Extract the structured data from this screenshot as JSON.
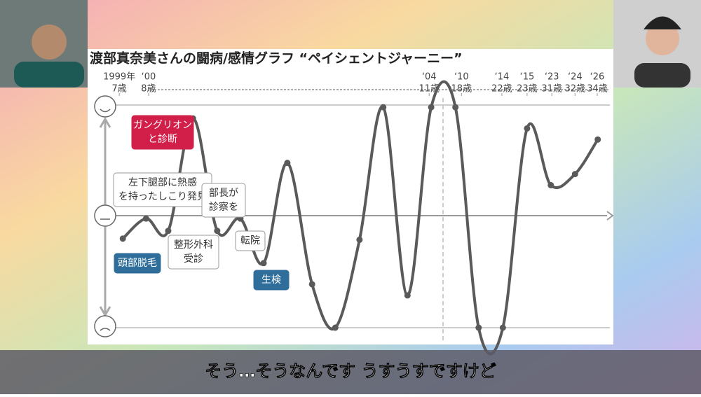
{
  "chart_data": {
    "type": "line",
    "title": "渡部真奈美さんの闘病/感情グラフ “ペイシェントジャーニー”",
    "xlim": [
      0,
      100
    ],
    "xticks": [
      {
        "value": 2.8,
        "label": "1999年"
      },
      {
        "value": 8.6,
        "label": "‘00"
      },
      {
        "value": 64.2,
        "label": "‘04"
      },
      {
        "value": 70.6,
        "label": "‘10"
      },
      {
        "value": 78.6,
        "label": "‘14"
      },
      {
        "value": 83.6,
        "label": "‘15"
      },
      {
        "value": 88.5,
        "label": "‘23"
      },
      {
        "value": 93.1,
        "label": "‘24"
      },
      {
        "value": 97.5,
        "label": "‘26"
      }
    ],
    "tick_ages": [
      "7歳",
      "8歳",
      "11歳",
      "18歳",
      "22歳",
      "23歳",
      "31歳",
      "32歳",
      "34歳"
    ],
    "ylim": [
      -1,
      1
    ],
    "series": [
      {
        "color": "#5a5a5a",
        "x": [
          3.5,
          8.1,
          12.5,
          17.4,
          22.2,
          26.8,
          31.4,
          36.1,
          41.0,
          45.6,
          50.4,
          55.1,
          59.9,
          64.6,
          69.4,
          74.0,
          78.8,
          83.6,
          88.3,
          93.1,
          97.6
        ],
        "values": [
          -0.2,
          -0.02,
          -0.13,
          0.88,
          -0.13,
          -0.02,
          -0.42,
          0.48,
          -0.61,
          -1.0,
          -0.21,
          0.98,
          -0.71,
          0.98,
          0.98,
          -1.0,
          -1.0,
          0.79,
          0.28,
          0.38,
          0.69
        ]
      }
    ],
    "annotations": [
      {
        "lines": [
          "ガングリオン",
          "と診断"
        ],
        "style": "red"
      },
      {
        "lines": [
          "左下腿部に熱感",
          "を持ったしこり発見"
        ],
        "style": "white"
      },
      {
        "lines": [
          "部長が",
          "診察を"
        ],
        "style": "white"
      },
      {
        "lines": [
          "頭部脱毛"
        ],
        "style": "blue"
      },
      {
        "lines": [
          "整形外科",
          "受診"
        ],
        "style": "white"
      },
      {
        "lines": [
          "転院"
        ],
        "style": "white"
      },
      {
        "lines": [
          "生検"
        ],
        "style": "blue"
      }
    ]
  },
  "caption": "そう…そうなんです うすうすですけど"
}
